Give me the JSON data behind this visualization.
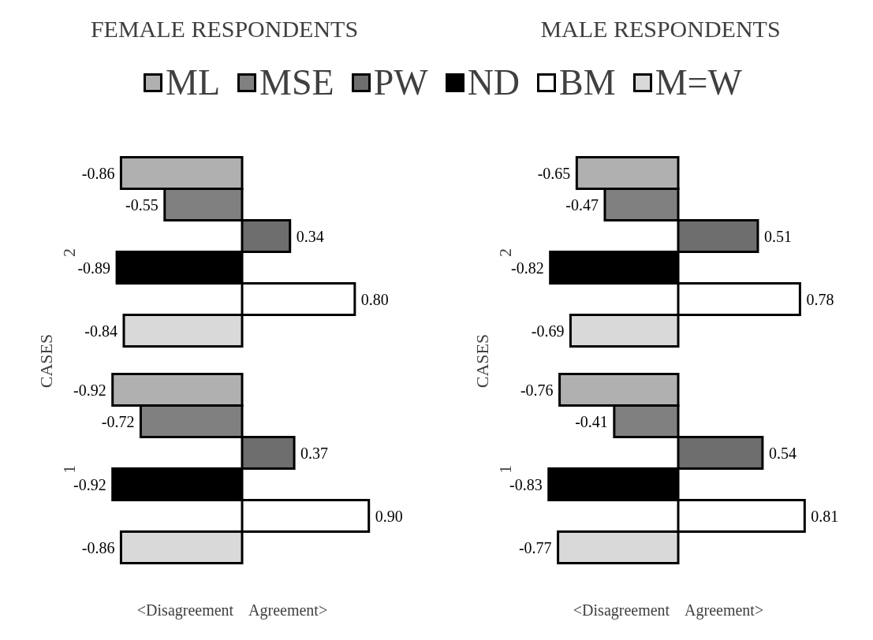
{
  "chart_data": [
    {
      "type": "bar",
      "orientation": "horizontal",
      "title": "FEMALE RESPONDENTS",
      "ylabel": "CASES",
      "xlabel": "<Disagreement    Agreement>",
      "categories": [
        "2",
        "1"
      ],
      "legend": "top",
      "series": [
        {
          "name": "ML",
          "color": "#b0b0b0",
          "values": [
            -0.86,
            -0.92
          ],
          "value_labels": [
            "-0.86",
            "-0.92"
          ]
        },
        {
          "name": "MSE",
          "color": "#808080",
          "values": [
            -0.55,
            -0.72
          ],
          "value_labels": [
            "-0.55",
            "-0.72"
          ]
        },
        {
          "name": "PW",
          "color": "#6e6e6e",
          "values": [
            0.34,
            0.37
          ],
          "value_labels": [
            "0.34",
            "0.37"
          ]
        },
        {
          "name": "ND",
          "color": "#000000",
          "values": [
            -0.89,
            -0.92
          ],
          "value_labels": [
            "-0.89",
            "-0.92"
          ]
        },
        {
          "name": "BM",
          "color": "#ffffff",
          "values": [
            0.8,
            0.9
          ],
          "value_labels": [
            "0.80",
            "0.90"
          ]
        },
        {
          "name": "M=W",
          "color": "#d9d9d9",
          "values": [
            -0.84,
            -0.86
          ],
          "value_labels": [
            "-0.84",
            "-0.86"
          ]
        }
      ]
    },
    {
      "type": "bar",
      "orientation": "horizontal",
      "title": "MALE RESPONDENTS",
      "ylabel": "CASES",
      "xlabel": "<Disagreement    Agreement>",
      "categories": [
        "2",
        "1"
      ],
      "series": [
        {
          "color": "#b0b0b0",
          "values": [
            -0.65,
            -0.76
          ],
          "value_labels": [
            "-0.65",
            "-0.76"
          ]
        },
        {
          "color": "#808080",
          "values": [
            -0.47,
            -0.41
          ],
          "value_labels": [
            "-0.47",
            "-0.41"
          ]
        },
        {
          "color": "#6e6e6e",
          "values": [
            0.51,
            0.54
          ],
          "value_labels": [
            "0.51",
            "0.54"
          ]
        },
        {
          "color": "#000000",
          "values": [
            -0.82,
            -0.83
          ],
          "value_labels": [
            "-0.82",
            "-0.83"
          ]
        },
        {
          "color": "#ffffff",
          "values": [
            0.78,
            0.81
          ],
          "value_labels": [
            "0.78",
            "0.81"
          ]
        },
        {
          "color": "#d9d9d9",
          "values": [
            -0.69,
            -0.77
          ],
          "value_labels": [
            "-0.69",
            "-0.77"
          ]
        }
      ]
    }
  ]
}
